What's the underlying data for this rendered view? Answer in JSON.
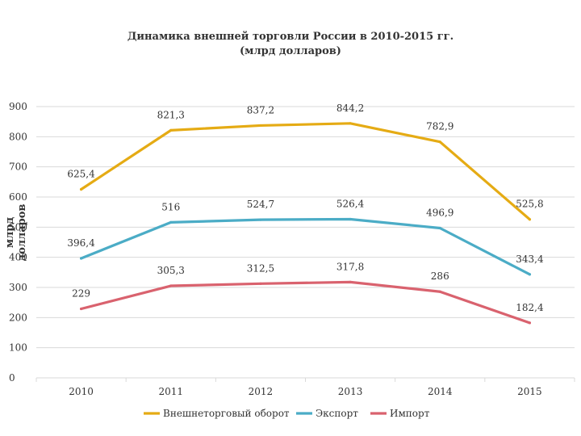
{
  "chart_data": {
    "type": "line",
    "title": "Динамика внешней торговли России в 2010-2015 гг.",
    "subtitle": "(млрд долларов)",
    "xlabel": "",
    "ylabel": "млрд долларов",
    "categories": [
      "2010",
      "2011",
      "2012",
      "2013",
      "2014",
      "2015"
    ],
    "y_ticks": [
      "0",
      "100",
      "200",
      "300",
      "400",
      "500",
      "600",
      "700",
      "800",
      "900"
    ],
    "ylim": [
      0,
      900
    ],
    "grid": "horizontal",
    "legend_position": "bottom",
    "series": [
      {
        "name": "Внешнеторговый оборот",
        "color": "#E5AB14",
        "values": [
          625.4,
          821.3,
          837.2,
          844.2,
          782.9,
          525.8
        ],
        "labels": [
          "625,4",
          "821,3",
          "837,2",
          "844,2",
          "782,9",
          "525,8"
        ]
      },
      {
        "name": "Экспорт",
        "color": "#4BACC6",
        "values": [
          396.4,
          516,
          524.7,
          526.4,
          496.9,
          343.4
        ],
        "labels": [
          "396,4",
          "516",
          "524,7",
          "526,4",
          "496,9",
          "343,4"
        ]
      },
      {
        "name": "Импорт",
        "color": "#D9626E",
        "values": [
          229,
          305.3,
          312.5,
          317.8,
          286,
          182.4
        ],
        "labels": [
          "229",
          "305,3",
          "312,5",
          "317,8",
          "286",
          "182,4"
        ]
      }
    ]
  }
}
